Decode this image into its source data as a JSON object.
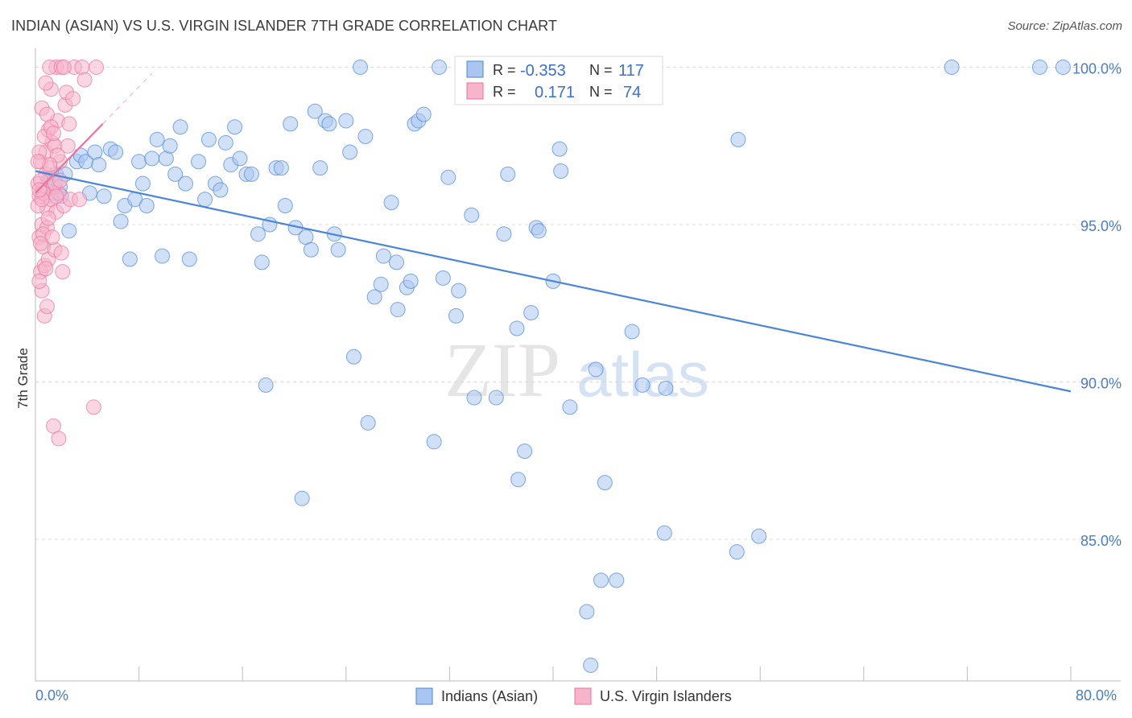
{
  "title": "INDIAN (ASIAN) VS U.S. VIRGIN ISLANDER 7TH GRADE CORRELATION CHART",
  "source": "Source: ZipAtlas.com",
  "watermark": {
    "zip": "ZIP",
    "atlas": "atlas"
  },
  "legend_box": {
    "rows": [
      {
        "r_label": "R =",
        "r_value": "-0.353",
        "n_label": "N =",
        "n_value": "117",
        "color": "#a9c6f0"
      },
      {
        "r_label": "R =",
        "r_value": "0.171",
        "n_label": "N =",
        "n_value": "74",
        "color": "#f6b5ca"
      }
    ]
  },
  "bottom_legend": [
    {
      "label": "Indians (Asian)",
      "color": "#a9c6f0"
    },
    {
      "label": "U.S. Virgin Islanders",
      "color": "#f6b5ca"
    }
  ],
  "chart_data": {
    "type": "scatter",
    "title": "INDIAN (ASIAN) VS U.S. VIRGIN ISLANDER 7TH GRADE CORRELATION CHART",
    "xlabel": "",
    "ylabel": "7th Grade",
    "xlim": [
      0,
      80
    ],
    "ylim": [
      80.5,
      100.6
    ],
    "x_tick_labels": [
      "0.0%",
      "80.0%"
    ],
    "y_ticks": [
      85,
      90,
      95,
      100
    ],
    "y_tick_labels": [
      "85.0%",
      "90.0%",
      "95.0%",
      "100.0%"
    ],
    "grid": true,
    "legend_position": "top-center",
    "series": [
      {
        "name": "Indians (Asian)",
        "color": "#4a86d8",
        "fill": "#a9c6f0",
        "trend": {
          "x": [
            0,
            80
          ],
          "y": [
            96.7,
            89.7
          ]
        },
        "points": [
          [
            1.0,
            96.4
          ],
          [
            1.2,
            96.5
          ],
          [
            1.4,
            96.0
          ],
          [
            1.6,
            96.6
          ],
          [
            1.9,
            96.2
          ],
          [
            2.3,
            96.6
          ],
          [
            2.6,
            94.8
          ],
          [
            3.2,
            97.0
          ],
          [
            3.5,
            97.2
          ],
          [
            3.9,
            97.0
          ],
          [
            4.2,
            96.0
          ],
          [
            4.6,
            97.3
          ],
          [
            4.9,
            96.9
          ],
          [
            5.3,
            95.9
          ],
          [
            5.8,
            97.4
          ],
          [
            6.2,
            97.3
          ],
          [
            6.6,
            95.1
          ],
          [
            6.9,
            95.6
          ],
          [
            7.3,
            93.9
          ],
          [
            7.7,
            95.8
          ],
          [
            8.0,
            97.0
          ],
          [
            8.3,
            96.3
          ],
          [
            8.6,
            95.6
          ],
          [
            9.0,
            97.1
          ],
          [
            9.4,
            97.7
          ],
          [
            9.8,
            94.0
          ],
          [
            10.1,
            97.1
          ],
          [
            10.4,
            97.5
          ],
          [
            10.8,
            96.6
          ],
          [
            11.2,
            98.1
          ],
          [
            11.6,
            96.3
          ],
          [
            11.9,
            93.9
          ],
          [
            12.6,
            97.0
          ],
          [
            13.1,
            95.8
          ],
          [
            13.4,
            97.7
          ],
          [
            13.9,
            96.3
          ],
          [
            14.3,
            96.1
          ],
          [
            14.7,
            97.6
          ],
          [
            15.1,
            96.9
          ],
          [
            15.4,
            98.1
          ],
          [
            15.8,
            97.1
          ],
          [
            16.3,
            96.6
          ],
          [
            16.7,
            96.6
          ],
          [
            17.2,
            94.7
          ],
          [
            17.5,
            93.8
          ],
          [
            17.8,
            89.9
          ],
          [
            18.1,
            95.0
          ],
          [
            18.6,
            96.8
          ],
          [
            19.0,
            96.8
          ],
          [
            19.3,
            95.6
          ],
          [
            19.7,
            98.2
          ],
          [
            20.1,
            94.9
          ],
          [
            20.6,
            86.3
          ],
          [
            20.9,
            94.6
          ],
          [
            21.3,
            94.2
          ],
          [
            21.6,
            98.6
          ],
          [
            22.0,
            96.8
          ],
          [
            22.4,
            98.3
          ],
          [
            22.7,
            98.2
          ],
          [
            23.1,
            94.7
          ],
          [
            23.4,
            94.2
          ],
          [
            24.0,
            98.3
          ],
          [
            24.3,
            97.3
          ],
          [
            24.6,
            90.8
          ],
          [
            25.5,
            97.8
          ],
          [
            25.7,
            88.7
          ],
          [
            26.2,
            92.7
          ],
          [
            26.7,
            93.1
          ],
          [
            26.9,
            94.0
          ],
          [
            27.5,
            95.7
          ],
          [
            27.9,
            93.8
          ],
          [
            28.0,
            92.3
          ],
          [
            28.7,
            93.0
          ],
          [
            29.0,
            93.2
          ],
          [
            29.3,
            98.2
          ],
          [
            29.6,
            98.3
          ],
          [
            30.0,
            98.5
          ],
          [
            30.8,
            88.1
          ],
          [
            31.2,
            100.0
          ],
          [
            31.5,
            93.3
          ],
          [
            31.9,
            96.5
          ],
          [
            32.5,
            92.1
          ],
          [
            32.7,
            92.9
          ],
          [
            33.7,
            95.3
          ],
          [
            33.9,
            89.5
          ],
          [
            35.6,
            89.5
          ],
          [
            36.2,
            94.7
          ],
          [
            36.5,
            96.6
          ],
          [
            37.2,
            91.7
          ],
          [
            37.3,
            86.9
          ],
          [
            37.8,
            87.8
          ],
          [
            38.3,
            92.2
          ],
          [
            38.7,
            94.9
          ],
          [
            38.9,
            94.8
          ],
          [
            40.0,
            93.2
          ],
          [
            40.5,
            97.4
          ],
          [
            40.6,
            96.7
          ],
          [
            41.3,
            89.2
          ],
          [
            42.6,
            82.7
          ],
          [
            42.9,
            81.0
          ],
          [
            43.3,
            90.4
          ],
          [
            43.7,
            83.7
          ],
          [
            44.0,
            86.8
          ],
          [
            44.9,
            83.7
          ],
          [
            46.1,
            91.6
          ],
          [
            46.9,
            89.9
          ],
          [
            47.5,
            100.0
          ],
          [
            48.6,
            85.2
          ],
          [
            48.7,
            89.8
          ],
          [
            54.2,
            84.6
          ],
          [
            54.3,
            97.7
          ],
          [
            55.9,
            85.1
          ],
          [
            25.1,
            100.0
          ],
          [
            70.8,
            100.0
          ],
          [
            77.6,
            100.0
          ],
          [
            79.4,
            100.0
          ],
          [
            2.0,
            95.9
          ]
        ]
      },
      {
        "name": "U.S. Virgin Islanders",
        "color": "#e8739b",
        "fill": "#f6b5ca",
        "trend": {
          "x": [
            0,
            5.2
          ],
          "y": [
            96.0,
            98.2
          ]
        },
        "trend_dashed": {
          "x": [
            5.2,
            9.0
          ],
          "y": [
            98.2,
            99.8
          ]
        },
        "points": [
          [
            0.2,
            96.3
          ],
          [
            0.3,
            95.9
          ],
          [
            0.3,
            94.6
          ],
          [
            0.4,
            97.0
          ],
          [
            0.4,
            93.5
          ],
          [
            0.5,
            92.9
          ],
          [
            0.5,
            95.0
          ],
          [
            0.6,
            96.1
          ],
          [
            0.6,
            94.3
          ],
          [
            0.7,
            93.7
          ],
          [
            0.7,
            92.1
          ],
          [
            0.8,
            97.3
          ],
          [
            0.8,
            96.6
          ],
          [
            0.9,
            95.5
          ],
          [
            0.9,
            94.9
          ],
          [
            1.0,
            98.0
          ],
          [
            1.0,
            93.9
          ],
          [
            1.1,
            96.8
          ],
          [
            1.2,
            95.8
          ],
          [
            1.2,
            99.3
          ],
          [
            1.3,
            97.6
          ],
          [
            1.4,
            96.2
          ],
          [
            1.4,
            88.6
          ],
          [
            1.5,
            97.5
          ],
          [
            1.5,
            94.2
          ],
          [
            1.6,
            95.4
          ],
          [
            1.6,
            100.0
          ],
          [
            1.7,
            98.3
          ],
          [
            1.8,
            96.0
          ],
          [
            1.8,
            88.2
          ],
          [
            1.9,
            97.0
          ],
          [
            2.0,
            94.1
          ],
          [
            2.1,
            93.5
          ],
          [
            2.2,
            95.6
          ],
          [
            2.3,
            98.8
          ],
          [
            2.4,
            99.2
          ],
          [
            2.5,
            97.5
          ],
          [
            2.6,
            98.2
          ],
          [
            2.7,
            95.8
          ],
          [
            2.9,
            99.0
          ],
          [
            3.0,
            100.0
          ],
          [
            3.4,
            95.8
          ],
          [
            3.6,
            100.0
          ],
          [
            3.8,
            99.6
          ],
          [
            4.7,
            100.0
          ],
          [
            0.3,
            97.3
          ],
          [
            0.4,
            96.4
          ],
          [
            0.5,
            98.7
          ],
          [
            0.6,
            94.7
          ],
          [
            0.8,
            99.5
          ],
          [
            0.9,
            98.5
          ],
          [
            1.1,
            100.0
          ],
          [
            1.3,
            94.6
          ],
          [
            1.5,
            96.3
          ],
          [
            2.0,
            100.0
          ],
          [
            2.2,
            100.0
          ],
          [
            0.2,
            95.6
          ],
          [
            0.3,
            93.2
          ],
          [
            0.6,
            96.0
          ],
          [
            0.7,
            97.8
          ],
          [
            0.9,
            92.4
          ],
          [
            1.0,
            95.2
          ],
          [
            1.2,
            98.1
          ],
          [
            1.4,
            97.9
          ],
          [
            1.7,
            97.2
          ],
          [
            1.9,
            96.4
          ],
          [
            0.4,
            94.4
          ],
          [
            0.5,
            95.8
          ],
          [
            0.8,
            93.6
          ],
          [
            1.1,
            96.9
          ],
          [
            4.5,
            89.2
          ],
          [
            0.2,
            97.0
          ],
          [
            0.3,
            96.1
          ],
          [
            1.6,
            95.9
          ]
        ]
      }
    ]
  }
}
